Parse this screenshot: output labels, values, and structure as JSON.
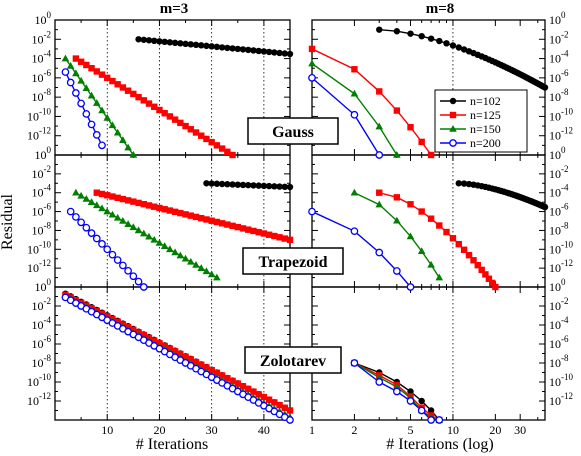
{
  "figure": {
    "column_titles": [
      "m=3",
      "m=8"
    ],
    "ylabel": "Residual",
    "xlabels": [
      "# Iterations",
      "# Iterations (log)"
    ],
    "row_labels": [
      "Gauss",
      "Trapezoid",
      "Zolotarev"
    ]
  },
  "chart_data": {
    "type": "line",
    "layout": "3 rows (Gauss, Trapezoid, Zolotarev) x 2 columns (m=3 linear x, m=8 log x)",
    "yscale": "log",
    "ylim": [
      1e-14,
      1
    ],
    "ytick_labels": [
      "10^0",
      "10^-2",
      "10^-4",
      "10^-6",
      "10^-8",
      "10^-10",
      "10^-12"
    ],
    "legend": {
      "placement": "inside top-right of Gauss m=8 panel",
      "entries": [
        {
          "name": "n=102",
          "color": "#000000",
          "marker": "filled circle"
        },
        {
          "name": "n=125",
          "color": "#ff0000",
          "marker": "filled square"
        },
        {
          "name": "n=150",
          "color": "#008000",
          "marker": "filled triangle"
        },
        {
          "name": "n=200",
          "color": "#0000ff",
          "marker": "open circle"
        }
      ]
    },
    "columns": [
      {
        "title": "m=3",
        "xscale": "linear",
        "xlim": [
          0,
          45
        ],
        "xticks": [
          10,
          20,
          30,
          40
        ],
        "grid": "dotted vertical lines at 10, 20, 30, 40",
        "xlabel": "# Iterations"
      },
      {
        "title": "m=8",
        "xscale": "log",
        "xlim": [
          1,
          45
        ],
        "xticks": [
          1,
          2,
          5,
          10,
          20,
          30
        ],
        "grid": "dotted vertical line at 10",
        "xlabel": "# Iterations (log)"
      }
    ],
    "panels": [
      {
        "row": "Gauss",
        "column": "m=3",
        "series": [
          {
            "name": "n=102",
            "x_start": 16,
            "x_end": 45,
            "y_start": 0.01,
            "y_end": 0.0003
          },
          {
            "name": "n=125",
            "x_start": 4,
            "x_end": 34,
            "y_start": 0.0001,
            "y_end": 1e-14
          },
          {
            "name": "n=150",
            "x_start": 2,
            "x_end": 15,
            "y_start": 0.0001,
            "y_end": 1e-14
          },
          {
            "name": "n=200",
            "x_start": 2,
            "x_end": 9,
            "y_start": 4e-06,
            "y_end": 1e-13
          }
        ]
      },
      {
        "row": "Gauss",
        "column": "m=8",
        "series": [
          {
            "name": "n=102",
            "x_start": 3,
            "x_end": 45,
            "y_start": 0.1,
            "y_end": 1e-07
          },
          {
            "name": "n=125",
            "x_start": 1,
            "x_end": 7,
            "y_start": 0.001,
            "y_end": 1e-14
          },
          {
            "name": "n=150",
            "x_start": 1,
            "x_end": 4,
            "y_start": 3e-05,
            "y_end": 1e-14
          },
          {
            "name": "n=200",
            "x_start": 1,
            "x_end": 3,
            "y_start": 1e-06,
            "y_end": 1e-14
          }
        ]
      },
      {
        "row": "Trapezoid",
        "column": "m=3",
        "series": [
          {
            "name": "n=102",
            "x_start": 29,
            "x_end": 45,
            "y_start": 0.001,
            "y_end": 0.0004
          },
          {
            "name": "n=125",
            "x_start": 8,
            "x_end": 45,
            "y_start": 0.0001,
            "y_end": 1e-09
          },
          {
            "name": "n=150",
            "x_start": 4,
            "x_end": 31,
            "y_start": 0.0001,
            "y_end": 1e-13
          },
          {
            "name": "n=200",
            "x_start": 3,
            "x_end": 17,
            "y_start": 1e-06,
            "y_end": 1e-14
          }
        ]
      },
      {
        "row": "Trapezoid",
        "column": "m=8",
        "series": [
          {
            "name": "n=102",
            "x_start": 11,
            "x_end": 45,
            "y_start": 0.001,
            "y_end": 3e-06
          },
          {
            "name": "n=125",
            "x_start": 3,
            "x_end": 20,
            "y_start": 0.0001,
            "y_end": 1e-14
          },
          {
            "name": "n=150",
            "x_start": 2,
            "x_end": 8,
            "y_start": 0.0001,
            "y_end": 1e-13
          },
          {
            "name": "n=200",
            "x_start": 1,
            "x_end": 5,
            "y_start": 1e-06,
            "y_end": 1e-14
          }
        ]
      },
      {
        "row": "Zolotarev",
        "column": "m=3",
        "series": [
          {
            "name": "n=102",
            "x_start": 2,
            "x_end": 45,
            "y_start": 0.2,
            "y_end": 1e-13
          },
          {
            "name": "n=125",
            "x_start": 2,
            "x_end": 45,
            "y_start": 0.15,
            "y_end": 1e-13
          },
          {
            "name": "n=150",
            "x_start": 2,
            "x_end": 45,
            "y_start": 0.1,
            "y_end": 2e-14
          },
          {
            "name": "n=200",
            "x_start": 2,
            "x_end": 45,
            "y_start": 0.08,
            "y_end": 1e-14
          }
        ]
      },
      {
        "row": "Zolotarev",
        "column": "m=8",
        "series": [
          {
            "name": "n=102",
            "x": [
              2,
              3,
              4,
              5,
              6,
              7,
              8
            ],
            "y": [
              1e-08,
              1e-09,
              1e-10,
              1e-11,
              1e-12,
              1e-13,
              1e-14
            ]
          },
          {
            "name": "n=125",
            "x": [
              2,
              3,
              4,
              5,
              6,
              7,
              8
            ],
            "y": [
              1e-08,
              5e-10,
              5e-11,
              3e-12,
              2e-13,
              3e-14,
              1e-14
            ]
          },
          {
            "name": "n=150",
            "x": [
              2,
              3,
              4,
              5,
              6,
              7,
              8
            ],
            "y": [
              1e-08,
              3e-10,
              3e-11,
              2e-12,
              1e-13,
              2e-14,
              1e-14
            ]
          },
          {
            "name": "n=200",
            "x": [
              2,
              3,
              4,
              5,
              6,
              7,
              8
            ],
            "y": [
              1e-08,
              1e-10,
              1e-11,
              1e-12,
              1e-13,
              1e-14,
              1e-14
            ]
          }
        ]
      }
    ]
  }
}
